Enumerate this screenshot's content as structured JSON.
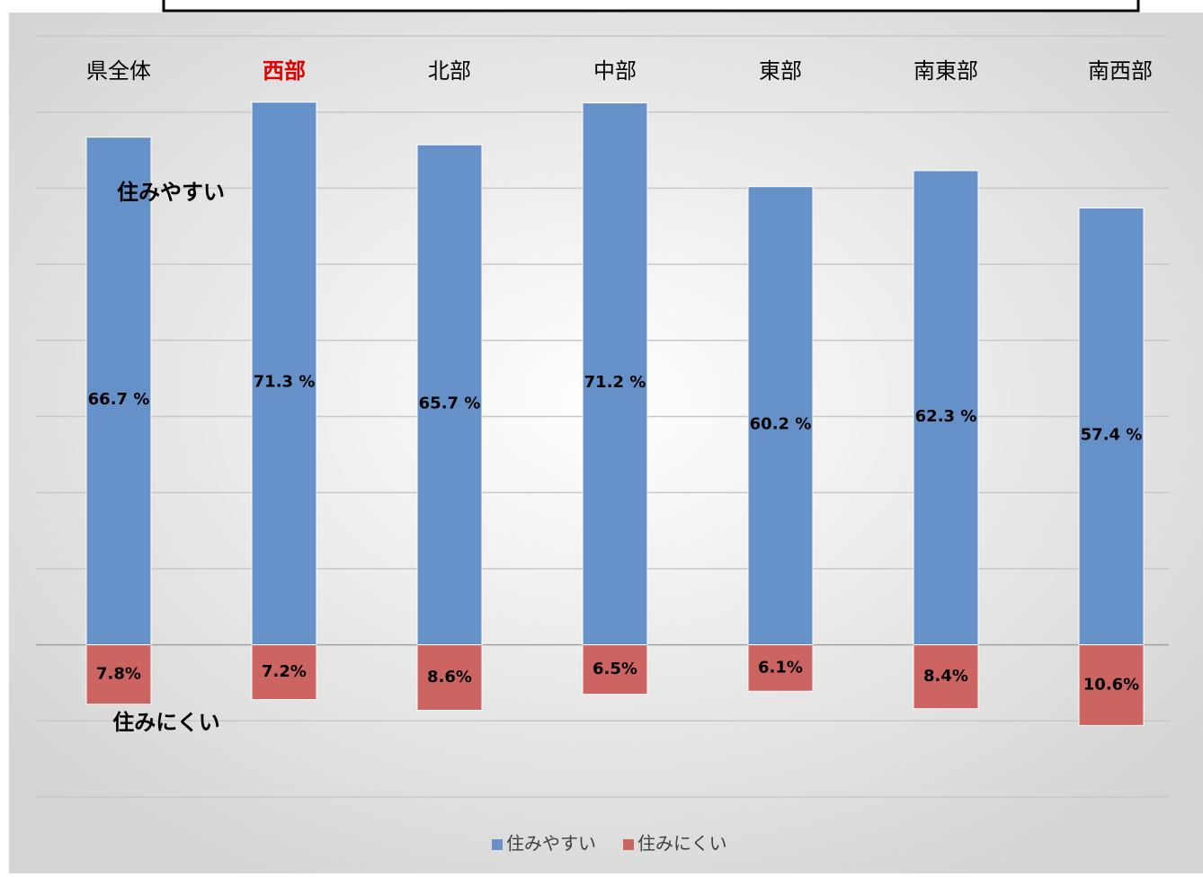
{
  "chart_data": {
    "type": "bar",
    "categories": [
      "県全体",
      "西部",
      "北部",
      "中部",
      "東部",
      "南東部",
      "南西部"
    ],
    "category_colors": [
      "#000000",
      "#e00000",
      "#000000",
      "#000000",
      "#000000",
      "#000000",
      "#000000"
    ],
    "series": [
      {
        "name": "住みやすい",
        "color": "#6591c8",
        "values": [
          66.7,
          71.3,
          65.7,
          71.2,
          60.2,
          62.3,
          57.4
        ],
        "value_labels": [
          "66.7 %",
          "71.3 %",
          "65.7 %",
          "71.2 %",
          "60.2 %",
          "62.3 %",
          "57.4 %"
        ]
      },
      {
        "name": "住みにくい",
        "color": "#cc6462",
        "values": [
          -7.8,
          -7.2,
          -8.6,
          -6.5,
          -6.1,
          -8.4,
          -10.6
        ],
        "value_labels": [
          "7.8%",
          "7.2%",
          "8.6%",
          "6.5%",
          "6.1%",
          "8.4%",
          "10.6%"
        ]
      }
    ],
    "annotations": [
      "住みやすい",
      "住みにくい"
    ],
    "ylim": [
      -20,
      80
    ],
    "yticks": [
      -20,
      -10,
      0,
      10,
      20,
      30,
      40,
      50,
      60,
      70,
      80
    ],
    "grid": true,
    "legend": "bottom"
  }
}
